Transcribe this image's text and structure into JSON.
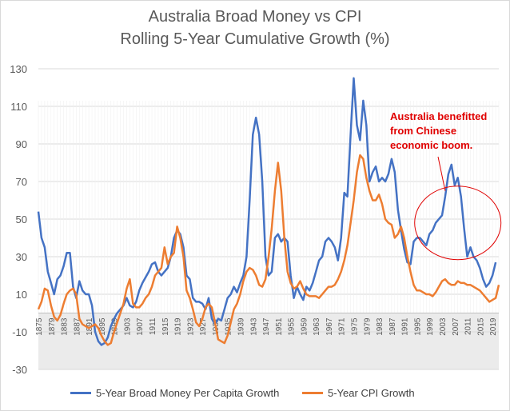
{
  "title": {
    "line1": "Australia Broad Money vs CPI",
    "line2": "Rolling 5-Year Cumulative Growth (%)"
  },
  "annotation": {
    "line1": "Australia benefitted",
    "line2": "from Chinese",
    "line3": "economic boom."
  },
  "colors": {
    "money": "#4472c4",
    "cpi": "#ed7d31",
    "annotation": "#e00000",
    "grid": "#d9d9d9",
    "negative_band": "#ebebeb"
  },
  "chart_data": {
    "type": "line",
    "title": "Australia Broad Money vs CPI Rolling 5-Year Cumulative Growth (%)",
    "xlabel": "",
    "ylabel": "",
    "ylim": [
      -30,
      130
    ],
    "yticks": [
      -30,
      -10,
      10,
      30,
      50,
      70,
      90,
      110,
      130
    ],
    "xticks": [
      "1875",
      "1879",
      "1883",
      "1887",
      "1891",
      "1895",
      "1899",
      "1903",
      "1907",
      "1911",
      "1915",
      "1919",
      "1923",
      "1927",
      "1931",
      "1935",
      "1939",
      "1943",
      "1947",
      "1951",
      "1955",
      "1959",
      "1963",
      "1967",
      "1971",
      "1975",
      "1979",
      "1983",
      "1987",
      "1991",
      "1995",
      "1999",
      "2003",
      "2007",
      "2011",
      "2015",
      "2019"
    ],
    "x_start": 1875,
    "x_end": 2021,
    "series": [
      {
        "name": "5-Year Broad Money Per Capita Growth",
        "color": "#4472c4",
        "points": [
          [
            1875,
            54
          ],
          [
            1876,
            40
          ],
          [
            1877,
            35
          ],
          [
            1878,
            22
          ],
          [
            1879,
            16
          ],
          [
            1880,
            10
          ],
          [
            1881,
            18
          ],
          [
            1882,
            20
          ],
          [
            1883,
            25
          ],
          [
            1884,
            32
          ],
          [
            1885,
            32
          ],
          [
            1886,
            14
          ],
          [
            1887,
            8
          ],
          [
            1888,
            17
          ],
          [
            1889,
            12
          ],
          [
            1890,
            10
          ],
          [
            1891,
            10
          ],
          [
            1892,
            4
          ],
          [
            1893,
            -10
          ],
          [
            1894,
            -15
          ],
          [
            1895,
            -17
          ],
          [
            1896,
            -16
          ],
          [
            1897,
            -13
          ],
          [
            1898,
            -7
          ],
          [
            1899,
            -3
          ],
          [
            1900,
            0
          ],
          [
            1901,
            2
          ],
          [
            1902,
            4
          ],
          [
            1903,
            8
          ],
          [
            1904,
            4
          ],
          [
            1905,
            3
          ],
          [
            1906,
            6
          ],
          [
            1907,
            12
          ],
          [
            1908,
            16
          ],
          [
            1909,
            19
          ],
          [
            1910,
            22
          ],
          [
            1911,
            26
          ],
          [
            1912,
            27
          ],
          [
            1913,
            22
          ],
          [
            1914,
            20
          ],
          [
            1915,
            22
          ],
          [
            1916,
            24
          ],
          [
            1917,
            30
          ],
          [
            1918,
            40
          ],
          [
            1919,
            44
          ],
          [
            1920,
            42
          ],
          [
            1921,
            35
          ],
          [
            1922,
            20
          ],
          [
            1923,
            18
          ],
          [
            1924,
            8
          ],
          [
            1925,
            6
          ],
          [
            1926,
            6
          ],
          [
            1927,
            5
          ],
          [
            1928,
            2
          ],
          [
            1929,
            8
          ],
          [
            1930,
            -3
          ],
          [
            1931,
            -6
          ],
          [
            1932,
            -3
          ],
          [
            1933,
            -4
          ],
          [
            1934,
            2
          ],
          [
            1935,
            8
          ],
          [
            1936,
            10
          ],
          [
            1937,
            14
          ],
          [
            1938,
            11
          ],
          [
            1939,
            16
          ],
          [
            1940,
            20
          ],
          [
            1941,
            30
          ],
          [
            1942,
            60
          ],
          [
            1943,
            95
          ],
          [
            1944,
            104
          ],
          [
            1945,
            95
          ],
          [
            1946,
            70
          ],
          [
            1947,
            30
          ],
          [
            1948,
            20
          ],
          [
            1949,
            22
          ],
          [
            1950,
            40
          ],
          [
            1951,
            42
          ],
          [
            1952,
            38
          ],
          [
            1953,
            40
          ],
          [
            1954,
            38
          ],
          [
            1955,
            20
          ],
          [
            1956,
            8
          ],
          [
            1957,
            14
          ],
          [
            1958,
            10
          ],
          [
            1959,
            7
          ],
          [
            1960,
            14
          ],
          [
            1961,
            12
          ],
          [
            1962,
            16
          ],
          [
            1963,
            22
          ],
          [
            1964,
            28
          ],
          [
            1965,
            30
          ],
          [
            1966,
            38
          ],
          [
            1967,
            40
          ],
          [
            1968,
            38
          ],
          [
            1969,
            35
          ],
          [
            1970,
            28
          ],
          [
            1971,
            40
          ],
          [
            1972,
            64
          ],
          [
            1973,
            62
          ],
          [
            1974,
            95
          ],
          [
            1975,
            125
          ],
          [
            1976,
            100
          ],
          [
            1977,
            92
          ],
          [
            1978,
            113
          ],
          [
            1979,
            100
          ],
          [
            1980,
            70
          ],
          [
            1981,
            75
          ],
          [
            1982,
            78
          ],
          [
            1983,
            70
          ],
          [
            1984,
            72
          ],
          [
            1985,
            70
          ],
          [
            1986,
            74
          ],
          [
            1987,
            82
          ],
          [
            1988,
            75
          ],
          [
            1989,
            55
          ],
          [
            1990,
            44
          ],
          [
            1991,
            34
          ],
          [
            1992,
            27
          ],
          [
            1993,
            26
          ],
          [
            1994,
            38
          ],
          [
            1995,
            40
          ],
          [
            1996,
            40
          ],
          [
            1997,
            38
          ],
          [
            1998,
            36
          ],
          [
            1999,
            42
          ],
          [
            2000,
            44
          ],
          [
            2001,
            48
          ],
          [
            2002,
            50
          ],
          [
            2003,
            52
          ],
          [
            2004,
            62
          ],
          [
            2005,
            74
          ],
          [
            2006,
            79
          ],
          [
            2007,
            68
          ],
          [
            2008,
            72
          ],
          [
            2009,
            62
          ],
          [
            2010,
            45
          ],
          [
            2011,
            30
          ],
          [
            2012,
            35
          ],
          [
            2013,
            30
          ],
          [
            2014,
            28
          ],
          [
            2015,
            24
          ],
          [
            2016,
            18
          ],
          [
            2017,
            14
          ],
          [
            2018,
            16
          ],
          [
            2019,
            20
          ],
          [
            2020,
            27
          ]
        ]
      },
      {
        "name": "5-Year CPI Growth",
        "color": "#ed7d31",
        "points": [
          [
            1875,
            2
          ],
          [
            1876,
            6
          ],
          [
            1877,
            13
          ],
          [
            1878,
            12
          ],
          [
            1879,
            4
          ],
          [
            1880,
            -2
          ],
          [
            1881,
            -4
          ],
          [
            1882,
            -1
          ],
          [
            1883,
            5
          ],
          [
            1884,
            10
          ],
          [
            1885,
            12
          ],
          [
            1886,
            13
          ],
          [
            1887,
            10
          ],
          [
            1888,
            -3
          ],
          [
            1889,
            -6
          ],
          [
            1890,
            -7
          ],
          [
            1891,
            -8
          ],
          [
            1892,
            -7
          ],
          [
            1893,
            -6
          ],
          [
            1894,
            -8
          ],
          [
            1895,
            -12
          ],
          [
            1896,
            -15
          ],
          [
            1897,
            -17
          ],
          [
            1898,
            -16
          ],
          [
            1899,
            -10
          ],
          [
            1900,
            -5
          ],
          [
            1901,
            0
          ],
          [
            1902,
            5
          ],
          [
            1903,
            13
          ],
          [
            1904,
            18
          ],
          [
            1905,
            5
          ],
          [
            1906,
            3
          ],
          [
            1907,
            3
          ],
          [
            1908,
            5
          ],
          [
            1909,
            8
          ],
          [
            1910,
            10
          ],
          [
            1911,
            14
          ],
          [
            1912,
            20
          ],
          [
            1913,
            22
          ],
          [
            1914,
            24
          ],
          [
            1915,
            35
          ],
          [
            1916,
            26
          ],
          [
            1917,
            30
          ],
          [
            1918,
            32
          ],
          [
            1919,
            46
          ],
          [
            1920,
            40
          ],
          [
            1921,
            30
          ],
          [
            1922,
            12
          ],
          [
            1923,
            8
          ],
          [
            1924,
            2
          ],
          [
            1925,
            -5
          ],
          [
            1926,
            -7
          ],
          [
            1927,
            -3
          ],
          [
            1928,
            3
          ],
          [
            1929,
            5
          ],
          [
            1930,
            3
          ],
          [
            1931,
            -5
          ],
          [
            1932,
            -14
          ],
          [
            1933,
            -15
          ],
          [
            1934,
            -16
          ],
          [
            1935,
            -12
          ],
          [
            1936,
            -5
          ],
          [
            1937,
            2
          ],
          [
            1938,
            5
          ],
          [
            1939,
            10
          ],
          [
            1940,
            17
          ],
          [
            1941,
            22
          ],
          [
            1942,
            24
          ],
          [
            1943,
            23
          ],
          [
            1944,
            20
          ],
          [
            1945,
            15
          ],
          [
            1946,
            14
          ],
          [
            1947,
            18
          ],
          [
            1948,
            30
          ],
          [
            1949,
            45
          ],
          [
            1950,
            65
          ],
          [
            1951,
            80
          ],
          [
            1952,
            65
          ],
          [
            1953,
            40
          ],
          [
            1954,
            22
          ],
          [
            1955,
            16
          ],
          [
            1956,
            13
          ],
          [
            1957,
            14
          ],
          [
            1958,
            17
          ],
          [
            1959,
            13
          ],
          [
            1960,
            10
          ],
          [
            1961,
            9
          ],
          [
            1962,
            9
          ],
          [
            1963,
            9
          ],
          [
            1964,
            8
          ],
          [
            1965,
            10
          ],
          [
            1966,
            12
          ],
          [
            1967,
            14
          ],
          [
            1968,
            14
          ],
          [
            1969,
            15
          ],
          [
            1970,
            18
          ],
          [
            1971,
            22
          ],
          [
            1972,
            28
          ],
          [
            1973,
            36
          ],
          [
            1974,
            48
          ],
          [
            1975,
            60
          ],
          [
            1976,
            75
          ],
          [
            1977,
            84
          ],
          [
            1978,
            82
          ],
          [
            1979,
            72
          ],
          [
            1980,
            65
          ],
          [
            1981,
            60
          ],
          [
            1982,
            60
          ],
          [
            1983,
            63
          ],
          [
            1984,
            58
          ],
          [
            1985,
            50
          ],
          [
            1986,
            48
          ],
          [
            1987,
            47
          ],
          [
            1988,
            40
          ],
          [
            1989,
            42
          ],
          [
            1990,
            46
          ],
          [
            1991,
            40
          ],
          [
            1992,
            30
          ],
          [
            1993,
            22
          ],
          [
            1994,
            15
          ],
          [
            1995,
            12
          ],
          [
            1996,
            12
          ],
          [
            1997,
            11
          ],
          [
            1998,
            10
          ],
          [
            1999,
            10
          ],
          [
            2000,
            9
          ],
          [
            2001,
            11
          ],
          [
            2002,
            14
          ],
          [
            2003,
            17
          ],
          [
            2004,
            18
          ],
          [
            2005,
            16
          ],
          [
            2006,
            15
          ],
          [
            2007,
            15
          ],
          [
            2008,
            17
          ],
          [
            2009,
            16
          ],
          [
            2010,
            16
          ],
          [
            2011,
            15
          ],
          [
            2012,
            15
          ],
          [
            2013,
            14
          ],
          [
            2014,
            13
          ],
          [
            2015,
            12
          ],
          [
            2016,
            10
          ],
          [
            2017,
            8
          ],
          [
            2018,
            6
          ],
          [
            2019,
            7
          ],
          [
            2020,
            8
          ],
          [
            2021,
            15
          ]
        ]
      }
    ]
  }
}
